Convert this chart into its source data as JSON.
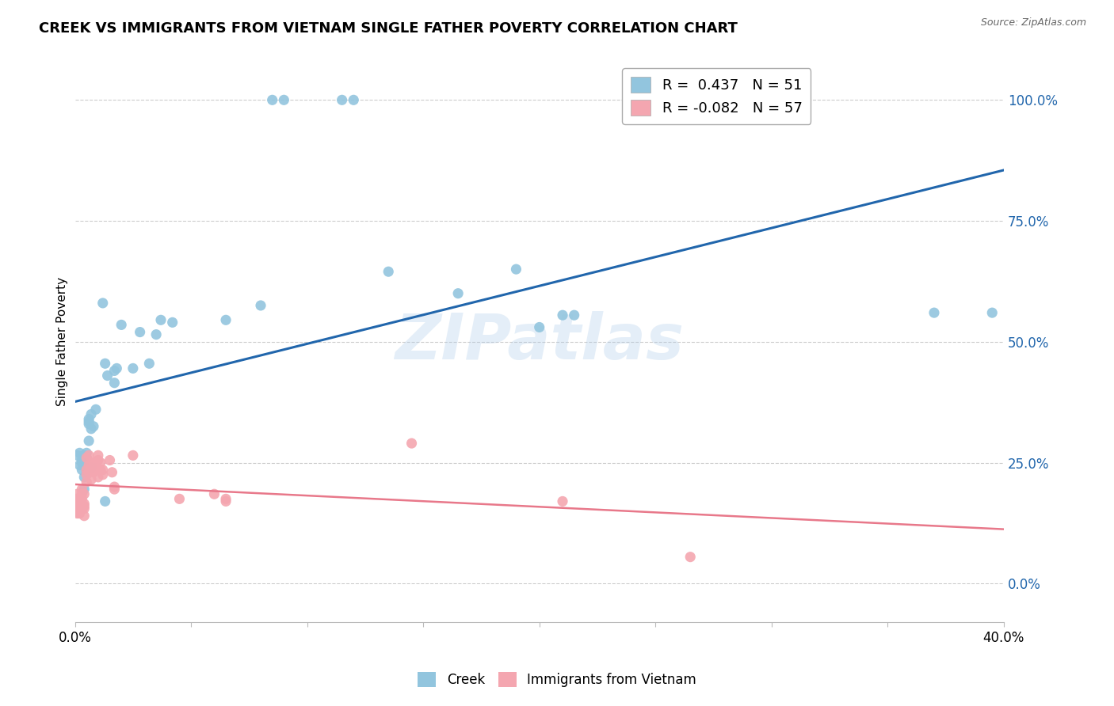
{
  "title": "CREEK VS IMMIGRANTS FROM VIETNAM SINGLE FATHER POVERTY CORRELATION CHART",
  "source": "Source: ZipAtlas.com",
  "ylabel": "Single Father Poverty",
  "y_tick_labels": [
    "0.0%",
    "25.0%",
    "50.0%",
    "75.0%",
    "100.0%"
  ],
  "y_tick_values": [
    0.0,
    0.25,
    0.5,
    0.75,
    1.0
  ],
  "x_range": [
    0.0,
    0.4
  ],
  "y_range": [
    -0.08,
    1.08
  ],
  "watermark": "ZIPatlas",
  "legend_blue_r": "0.437",
  "legend_blue_n": "51",
  "legend_pink_r": "-0.082",
  "legend_pink_n": "57",
  "creek_color": "#92c5de",
  "vietnam_color": "#f4a6b0",
  "trendline_blue": "#2166ac",
  "trendline_pink": "#e8788a",
  "creek_points": [
    [
      0.001,
      0.265
    ],
    [
      0.002,
      0.245
    ],
    [
      0.002,
      0.27
    ],
    [
      0.003,
      0.25
    ],
    [
      0.003,
      0.255
    ],
    [
      0.003,
      0.235
    ],
    [
      0.004,
      0.265
    ],
    [
      0.004,
      0.22
    ],
    [
      0.004,
      0.195
    ],
    [
      0.004,
      0.25
    ],
    [
      0.005,
      0.235
    ],
    [
      0.005,
      0.26
    ],
    [
      0.005,
      0.24
    ],
    [
      0.005,
      0.27
    ],
    [
      0.006,
      0.335
    ],
    [
      0.006,
      0.295
    ],
    [
      0.006,
      0.34
    ],
    [
      0.006,
      0.33
    ],
    [
      0.007,
      0.35
    ],
    [
      0.007,
      0.24
    ],
    [
      0.007,
      0.32
    ],
    [
      0.008,
      0.325
    ],
    [
      0.009,
      0.36
    ],
    [
      0.012,
      0.58
    ],
    [
      0.013,
      0.455
    ],
    [
      0.013,
      0.17
    ],
    [
      0.014,
      0.43
    ],
    [
      0.017,
      0.415
    ],
    [
      0.017,
      0.44
    ],
    [
      0.018,
      0.445
    ],
    [
      0.02,
      0.535
    ],
    [
      0.025,
      0.445
    ],
    [
      0.028,
      0.52
    ],
    [
      0.032,
      0.455
    ],
    [
      0.035,
      0.515
    ],
    [
      0.037,
      0.545
    ],
    [
      0.042,
      0.54
    ],
    [
      0.065,
      0.545
    ],
    [
      0.08,
      0.575
    ],
    [
      0.085,
      1.0
    ],
    [
      0.09,
      1.0
    ],
    [
      0.115,
      1.0
    ],
    [
      0.12,
      1.0
    ],
    [
      0.135,
      0.645
    ],
    [
      0.165,
      0.6
    ],
    [
      0.19,
      0.65
    ],
    [
      0.2,
      0.53
    ],
    [
      0.21,
      0.555
    ],
    [
      0.215,
      0.555
    ],
    [
      0.37,
      0.56
    ],
    [
      0.395,
      0.56
    ]
  ],
  "vietnam_points": [
    [
      0.001,
      0.185
    ],
    [
      0.001,
      0.175
    ],
    [
      0.001,
      0.165
    ],
    [
      0.001,
      0.155
    ],
    [
      0.001,
      0.145
    ],
    [
      0.002,
      0.16
    ],
    [
      0.002,
      0.175
    ],
    [
      0.002,
      0.155
    ],
    [
      0.002,
      0.145
    ],
    [
      0.002,
      0.175
    ],
    [
      0.002,
      0.16
    ],
    [
      0.002,
      0.155
    ],
    [
      0.003,
      0.195
    ],
    [
      0.003,
      0.165
    ],
    [
      0.003,
      0.185
    ],
    [
      0.003,
      0.175
    ],
    [
      0.003,
      0.16
    ],
    [
      0.003,
      0.155
    ],
    [
      0.004,
      0.165
    ],
    [
      0.004,
      0.185
    ],
    [
      0.004,
      0.155
    ],
    [
      0.004,
      0.14
    ],
    [
      0.004,
      0.16
    ],
    [
      0.005,
      0.235
    ],
    [
      0.005,
      0.21
    ],
    [
      0.005,
      0.225
    ],
    [
      0.005,
      0.26
    ],
    [
      0.006,
      0.245
    ],
    [
      0.006,
      0.23
    ],
    [
      0.006,
      0.265
    ],
    [
      0.007,
      0.235
    ],
    [
      0.007,
      0.215
    ],
    [
      0.007,
      0.245
    ],
    [
      0.008,
      0.245
    ],
    [
      0.008,
      0.23
    ],
    [
      0.008,
      0.25
    ],
    [
      0.009,
      0.235
    ],
    [
      0.009,
      0.25
    ],
    [
      0.01,
      0.22
    ],
    [
      0.01,
      0.255
    ],
    [
      0.01,
      0.265
    ],
    [
      0.011,
      0.25
    ],
    [
      0.011,
      0.235
    ],
    [
      0.012,
      0.235
    ],
    [
      0.012,
      0.225
    ],
    [
      0.015,
      0.255
    ],
    [
      0.016,
      0.23
    ],
    [
      0.017,
      0.2
    ],
    [
      0.017,
      0.195
    ],
    [
      0.025,
      0.265
    ],
    [
      0.045,
      0.175
    ],
    [
      0.06,
      0.185
    ],
    [
      0.065,
      0.175
    ],
    [
      0.065,
      0.17
    ],
    [
      0.145,
      0.29
    ],
    [
      0.21,
      0.17
    ],
    [
      0.265,
      0.055
    ]
  ]
}
